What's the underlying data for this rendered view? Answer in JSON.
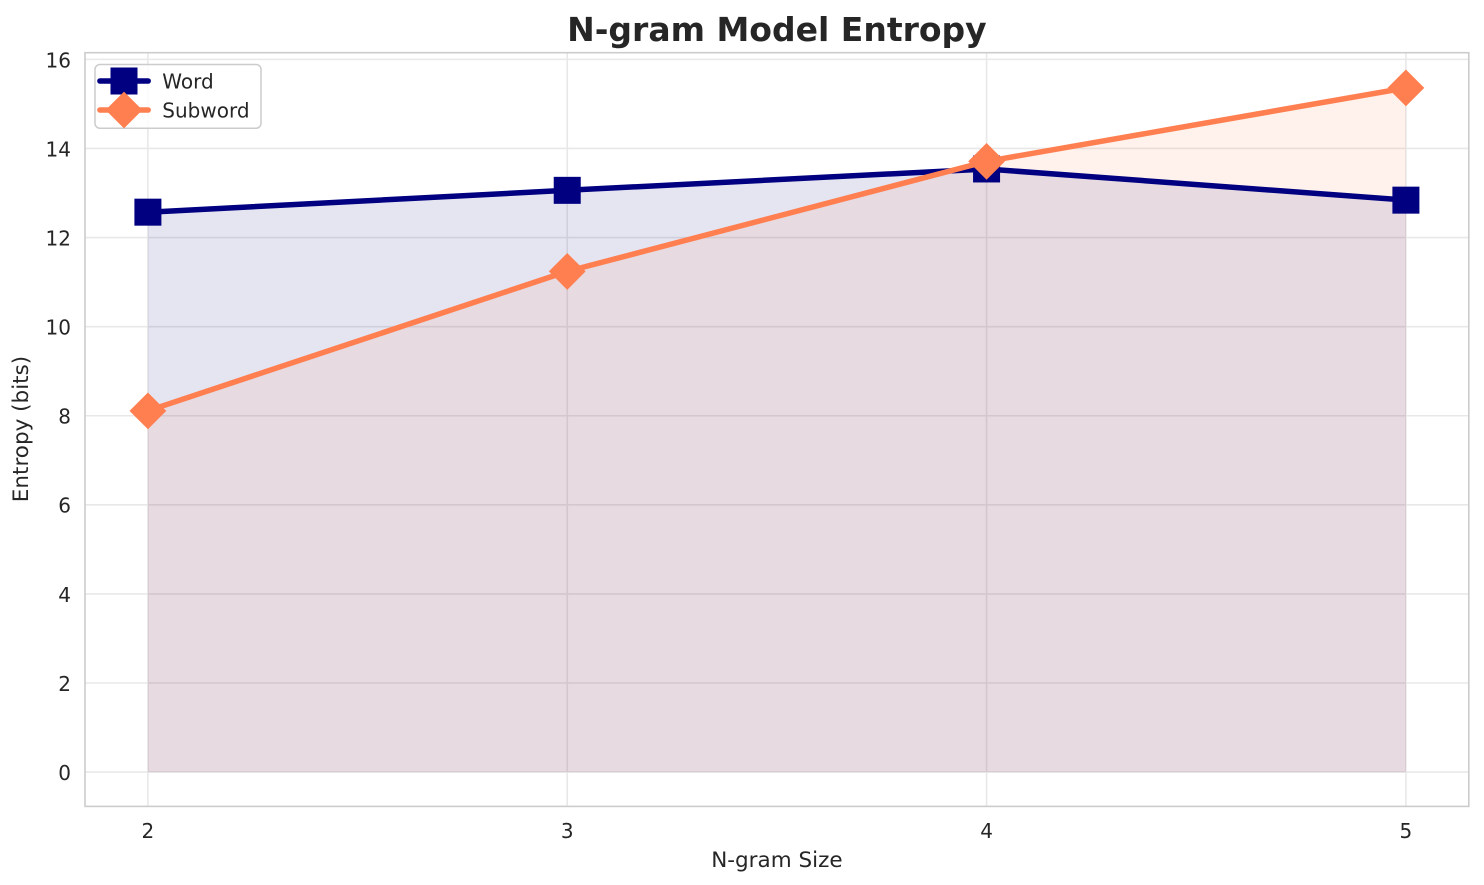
{
  "chart_data": {
    "type": "line",
    "title": "N-gram Model Entropy",
    "xlabel": "N-gram Size",
    "ylabel": "Entropy (bits)",
    "x": [
      2,
      3,
      4,
      5
    ],
    "x_tick_labels": [
      "2",
      "3",
      "4",
      "5"
    ],
    "y_tick_values": [
      0,
      2,
      4,
      6,
      8,
      10,
      12,
      14,
      16
    ],
    "y_tick_labels": [
      "0",
      "2",
      "4",
      "6",
      "8",
      "10",
      "12",
      "14",
      "16"
    ],
    "xlim": [
      1.85,
      5.15
    ],
    "ylim": [
      -0.77,
      16.15
    ],
    "grid": true,
    "legend_position": "upper left",
    "series": [
      {
        "name": "Word",
        "values": [
          12.57,
          13.06,
          13.54,
          12.84
        ],
        "color": "#000080",
        "marker": "square",
        "fill_to_zero": true,
        "fill_opacity": 0.1
      },
      {
        "name": "Subword",
        "values": [
          8.11,
          11.24,
          13.71,
          15.36
        ],
        "color": "#ff7f50",
        "marker": "diamond",
        "fill_to_zero": true,
        "fill_opacity": 0.1
      }
    ],
    "style": {
      "background_color": "#ffffff",
      "grid_color": "#e8e8e8",
      "spine_color": "#cccccc",
      "text_color": "#262626",
      "legend_border_color": "#cccccc",
      "legend_background": "#ffffff"
    }
  }
}
